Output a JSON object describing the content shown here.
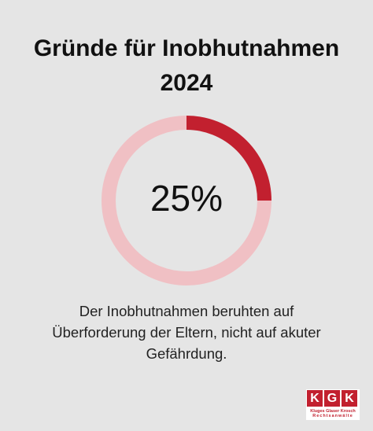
{
  "title": {
    "line1": "Gründe für Inobhutnahmen",
    "line2": "2024"
  },
  "chart_data": {
    "type": "pie",
    "style": "donut",
    "categories": [
      "Überforderung der Eltern",
      "Rest"
    ],
    "values": [
      25,
      75
    ],
    "center_label": "25%",
    "colors": {
      "highlight": "#c2202f",
      "track": "#f0c0c4"
    }
  },
  "caption": {
    "line1": "Der Inobhutnahmen beruhten auf",
    "line2": "Überforderung der Eltern, nicht auf akuter",
    "line3": "Gefährdung."
  },
  "logo": {
    "letters": [
      "K",
      "G",
      "K"
    ],
    "line1": "Kluges Glaser Krosch",
    "line2": "Rechtsanwälte",
    "color": "#c2202f"
  }
}
